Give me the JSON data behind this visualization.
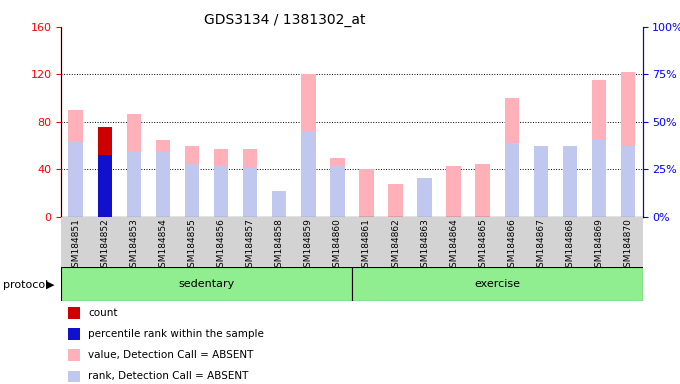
{
  "title": "GDS3134 / 1381302_at",
  "samples": [
    "GSM184851",
    "GSM184852",
    "GSM184853",
    "GSM184854",
    "GSM184855",
    "GSM184856",
    "GSM184857",
    "GSM184858",
    "GSM184859",
    "GSM184860",
    "GSM184861",
    "GSM184862",
    "GSM184863",
    "GSM184864",
    "GSM184865",
    "GSM184866",
    "GSM184867",
    "GSM184868",
    "GSM184869",
    "GSM184870"
  ],
  "value_absent": [
    90,
    0,
    87,
    65,
    60,
    57,
    57,
    17,
    120,
    50,
    40,
    28,
    33,
    43,
    45,
    100,
    0,
    33,
    115,
    122
  ],
  "rank_absent": [
    63,
    0,
    55,
    55,
    45,
    43,
    42,
    22,
    72,
    43,
    0,
    0,
    33,
    0,
    0,
    62,
    60,
    60,
    65,
    60
  ],
  "count_val": [
    0,
    76,
    0,
    0,
    0,
    0,
    0,
    0,
    0,
    0,
    0,
    0,
    0,
    0,
    0,
    0,
    0,
    0,
    0,
    0
  ],
  "pct_rank_val": [
    0,
    52,
    0,
    0,
    0,
    0,
    0,
    0,
    0,
    0,
    0,
    0,
    0,
    0,
    0,
    0,
    0,
    0,
    0,
    0
  ],
  "color_value_absent": "#ffb0b8",
  "color_rank_absent": "#c0c8f0",
  "color_count": "#cc0000",
  "color_pct_rank": "#1111cc",
  "ylim_left": [
    0,
    160
  ],
  "ylim_right": [
    0,
    100
  ],
  "yticks_left": [
    0,
    40,
    80,
    120,
    160
  ],
  "yticks_right": [
    0,
    25,
    50,
    75,
    100
  ],
  "ytick_labels_left": [
    "0",
    "40",
    "80",
    "120",
    "160"
  ],
  "ytick_labels_right": [
    "0%",
    "25%",
    "50%",
    "75%",
    "100%"
  ],
  "grid_lines": [
    40,
    80,
    120
  ],
  "sedentary_count": 10,
  "exercise_count": 10,
  "bar_width": 0.5,
  "legend_items": [
    [
      "#cc0000",
      "count"
    ],
    [
      "#1111cc",
      "percentile rank within the sample"
    ],
    [
      "#ffb0b8",
      "value, Detection Call = ABSENT"
    ],
    [
      "#c0c8f0",
      "rank, Detection Call = ABSENT"
    ]
  ],
  "protocol_label": "protocol",
  "sedentary_label": "sedentary",
  "exercise_label": "exercise",
  "title_fontsize": 10,
  "axis_label_fontsize": 8,
  "tick_fontsize": 6.5,
  "legend_fontsize": 7.5,
  "gray_bg": "#d3d3d3",
  "green_bg": "#90ee90"
}
